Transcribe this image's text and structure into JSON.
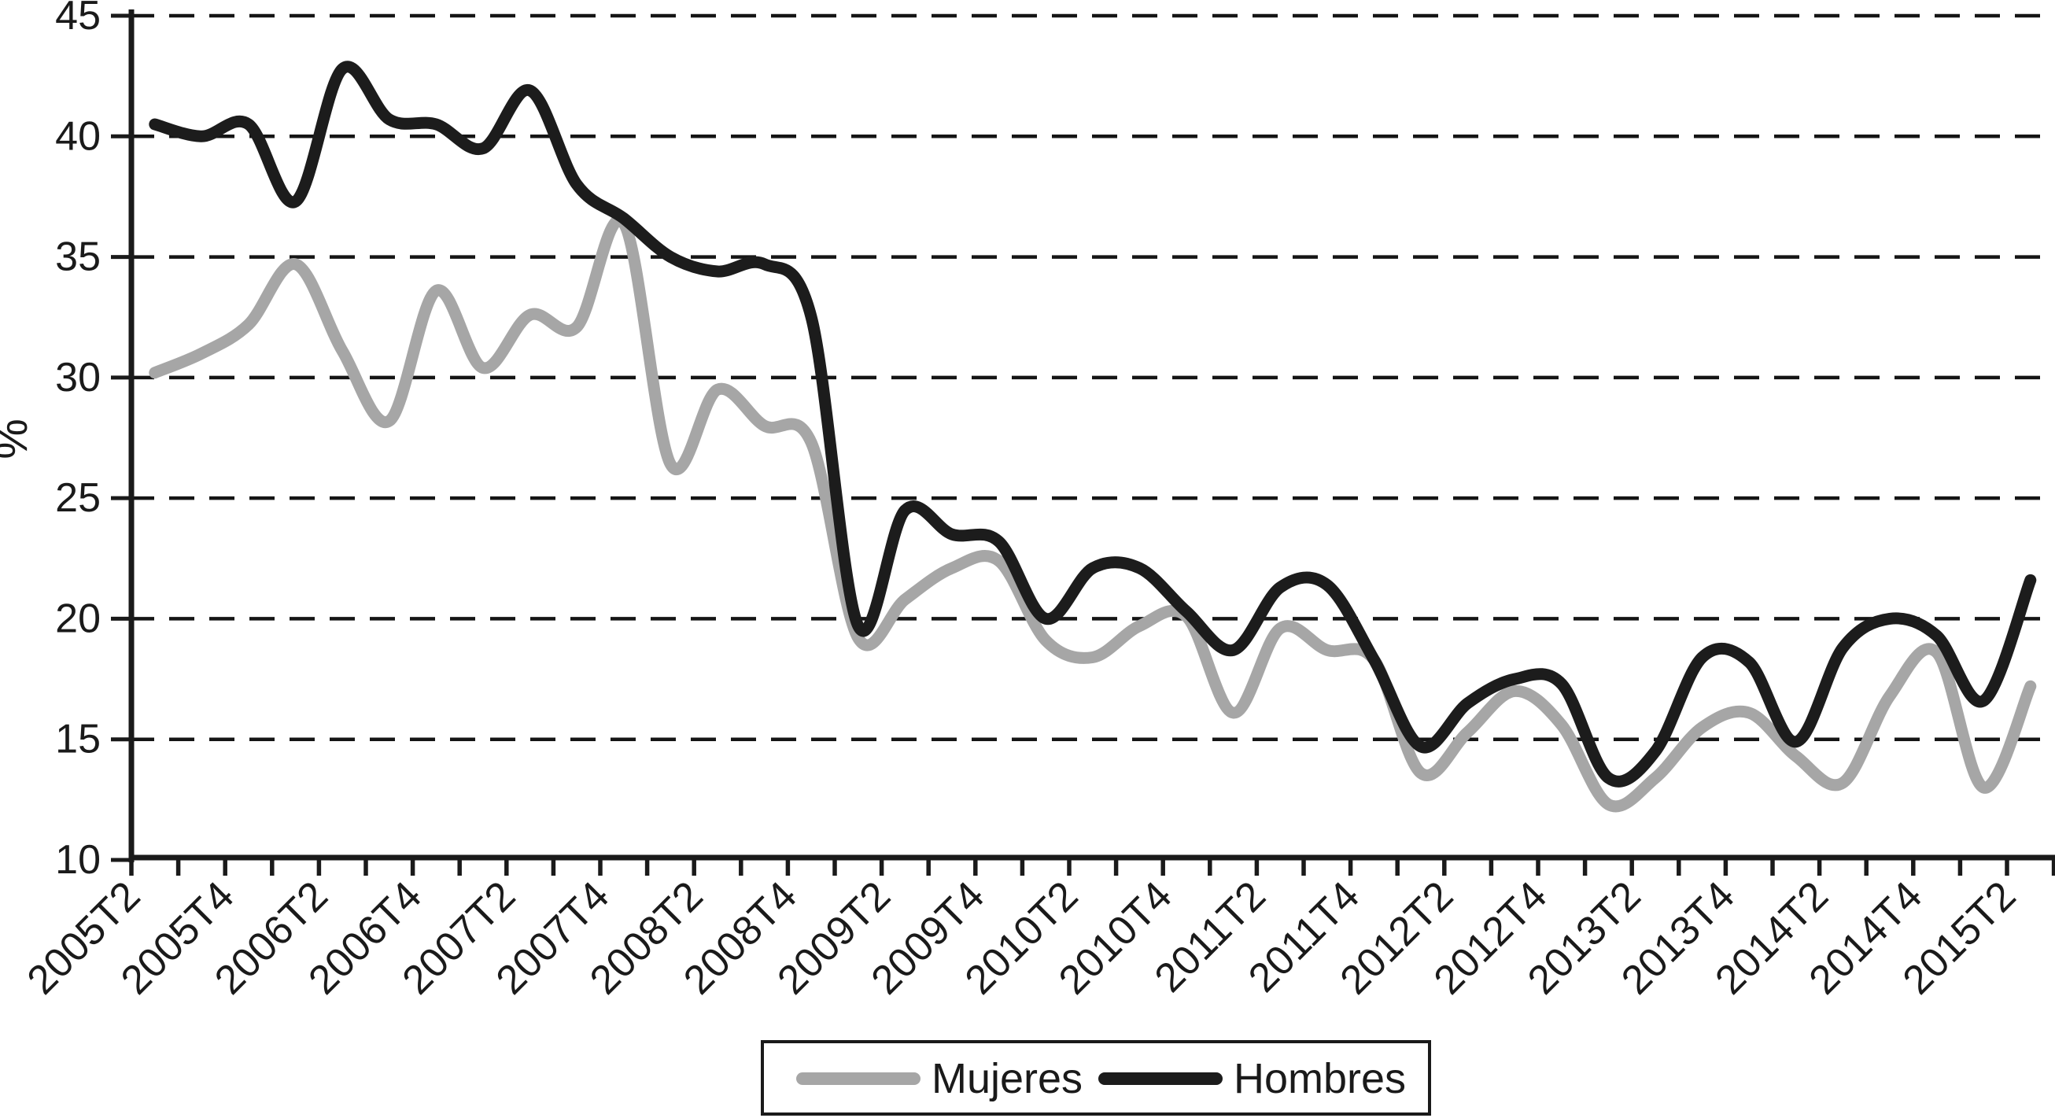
{
  "figure": {
    "background": "#ffffff",
    "axis_color": "#1a1a1a",
    "ylabel": "%"
  },
  "legend": {
    "position": "bottom-center",
    "items": [
      {
        "label": "Mujeres",
        "color": "#a6a6a6"
      },
      {
        "label": "Hombres",
        "color": "#1c1c1c"
      }
    ]
  },
  "chart_data": {
    "type": "line",
    "title": "",
    "xlabel": "",
    "ylabel": "%",
    "ylim": [
      10,
      45
    ],
    "y_ticks": [
      10,
      15,
      20,
      25,
      30,
      35,
      40,
      45
    ],
    "grid": "horizontal-dashed",
    "line_style": "smooth",
    "x_labels_shown_every": 2,
    "categories": [
      "2005T2",
      "2005T3",
      "2005T4",
      "2006T1",
      "2006T2",
      "2006T3",
      "2006T4",
      "2007T1",
      "2007T2",
      "2007T3",
      "2007T4",
      "2008T1",
      "2008T2",
      "2008T3",
      "2008T4",
      "2009T1",
      "2009T2",
      "2009T3",
      "2009T4",
      "2010T1",
      "2010T2",
      "2010T3",
      "2010T4",
      "2011T1",
      "2011T2",
      "2011T3",
      "2011T4",
      "2012T1",
      "2012T2",
      "2012T3",
      "2012T4",
      "2013T1",
      "2013T2",
      "2013T3",
      "2013T4",
      "2014T1",
      "2014T2",
      "2014T3",
      "2014T4",
      "2015T1",
      "2015T2"
    ],
    "series": [
      {
        "name": "Mujeres",
        "color": "#a6a6a6",
        "values": [
          30.2,
          31.0,
          32.2,
          34.7,
          31.1,
          28.2,
          33.6,
          30.4,
          32.6,
          32.1,
          36.4,
          26.4,
          29.5,
          28.0,
          27.3,
          19.2,
          20.8,
          22.1,
          22.4,
          19.1,
          18.4,
          19.7,
          20.1,
          16.1,
          19.6,
          18.7,
          18.3,
          13.6,
          15.3,
          17.0,
          15.6,
          12.3,
          13.4,
          15.5,
          16.1,
          14.3,
          13.2,
          16.8,
          18.6,
          13.0,
          17.2
        ]
      },
      {
        "name": "Hombres",
        "color": "#1c1c1c",
        "values": [
          40.5,
          40.0,
          40.5,
          37.3,
          42.8,
          40.7,
          40.5,
          39.5,
          41.9,
          38.0,
          36.6,
          35.0,
          34.4,
          34.7,
          32.5,
          19.7,
          24.5,
          23.5,
          23.2,
          20.0,
          22.1,
          22.1,
          20.3,
          18.7,
          21.3,
          21.4,
          18.3,
          14.7,
          16.5,
          17.5,
          17.3,
          13.4,
          14.5,
          18.4,
          18.2,
          14.9,
          18.8,
          20.0,
          19.3,
          16.6,
          21.6
        ]
      }
    ]
  }
}
